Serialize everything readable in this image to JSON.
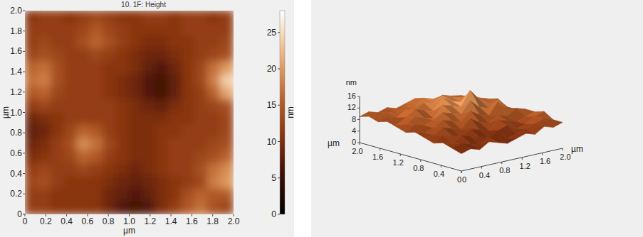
{
  "chart_data": [
    {
      "type": "heatmap",
      "title": "10. 1F: Height",
      "x_label": "µm",
      "y_label": "µm",
      "xlim": [
        0,
        2
      ],
      "ylim": [
        0,
        2
      ],
      "xticks": [
        0,
        0.2,
        0.4,
        0.6,
        0.8,
        {
          "value": 1,
          "label": "1.0"
        },
        1.2,
        1.4,
        1.6,
        1.8,
        {
          "value": 2,
          "label": "2.0"
        }
      ],
      "yticks": [
        0,
        0.2,
        0.4,
        0.6,
        0.8,
        {
          "value": 1,
          "label": "1.0"
        },
        1.2,
        1.4,
        1.6,
        1.8,
        {
          "value": 2,
          "label": "2.0"
        }
      ],
      "colorbar_label": "nm",
      "colorbar_range": [
        0,
        28
      ],
      "colorbar_ticks": [
        0,
        5,
        10,
        15,
        20,
        25
      ],
      "cells": [
        [
          11,
          12,
          12,
          11,
          12,
          13,
          12,
          11,
          11,
          12,
          12,
          11,
          12,
          12,
          11,
          12
        ],
        [
          12,
          12,
          12,
          12,
          13,
          15,
          13,
          12,
          11,
          11,
          11,
          11,
          12,
          12,
          12,
          12
        ],
        [
          12,
          13,
          12,
          12,
          14,
          16,
          14,
          12,
          11,
          10,
          10,
          11,
          11,
          12,
          12,
          13
        ],
        [
          13,
          14,
          13,
          12,
          12,
          13,
          12,
          11,
          10,
          9,
          9,
          10,
          11,
          12,
          13,
          14
        ],
        [
          16,
          17,
          14,
          12,
          12,
          12,
          11,
          11,
          10,
          8,
          7,
          9,
          11,
          13,
          17,
          20
        ],
        [
          17,
          18,
          14,
          12,
          12,
          12,
          11,
          10,
          9,
          7,
          6,
          8,
          11,
          13,
          18,
          24
        ],
        [
          15,
          16,
          13,
          12,
          12,
          12,
          11,
          10,
          9,
          7,
          6,
          8,
          11,
          12,
          16,
          21
        ],
        [
          12,
          13,
          12,
          12,
          12,
          12,
          12,
          11,
          10,
          9,
          8,
          10,
          11,
          12,
          13,
          14
        ],
        [
          9,
          10,
          11,
          12,
          12,
          12,
          12,
          11,
          10,
          10,
          10,
          11,
          11,
          12,
          12,
          13
        ],
        [
          8,
          9,
          11,
          13,
          16,
          15,
          12,
          11,
          10,
          10,
          11,
          11,
          12,
          12,
          12,
          13
        ],
        [
          9,
          10,
          12,
          14,
          19,
          17,
          13,
          11,
          10,
          10,
          11,
          12,
          12,
          12,
          13,
          14
        ],
        [
          10,
          11,
          12,
          13,
          16,
          15,
          12,
          11,
          10,
          10,
          11,
          12,
          12,
          13,
          14,
          16
        ],
        [
          12,
          13,
          12,
          12,
          13,
          12,
          11,
          10,
          9,
          10,
          11,
          12,
          12,
          14,
          17,
          19
        ],
        [
          13,
          14,
          12,
          11,
          11,
          11,
          10,
          9,
          8,
          9,
          10,
          11,
          12,
          13,
          18,
          20
        ],
        [
          12,
          12,
          11,
          11,
          11,
          11,
          9,
          8,
          7,
          8,
          10,
          11,
          14,
          16,
          15,
          15
        ],
        [
          12,
          12,
          11,
          11,
          11,
          11,
          9,
          7,
          6,
          7,
          10,
          12,
          15,
          17,
          14,
          13
        ]
      ]
    },
    {
      "type": "surface",
      "x_label": "µm",
      "y_label": "µm",
      "z_label": "nm",
      "xlim": [
        0,
        2
      ],
      "ylim": [
        0,
        2
      ],
      "zlim": [
        0,
        16
      ],
      "xticks": [
        0,
        0.4,
        0.8,
        1.2,
        1.6,
        {
          "value": 2,
          "label": "2.0"
        }
      ],
      "yticks": [
        0,
        0.4,
        0.8,
        1.2,
        1.6,
        {
          "value": 2,
          "label": "2.0"
        }
      ],
      "zticks": [
        0,
        4,
        8,
        12,
        16
      ],
      "z": [
        [
          6,
          7,
          6,
          8,
          7,
          6,
          7,
          8,
          7,
          9,
          8,
          9
        ],
        [
          7,
          8,
          7,
          6,
          8,
          7,
          6,
          7,
          8,
          9,
          10,
          9
        ],
        [
          8,
          7,
          9,
          8,
          7,
          6,
          8,
          9,
          7,
          8,
          10,
          11
        ],
        [
          7,
          9,
          8,
          7,
          9,
          8,
          7,
          10,
          9,
          8,
          9,
          10
        ],
        [
          8,
          8,
          10,
          9,
          8,
          11,
          9,
          8,
          10,
          9,
          11,
          10
        ],
        [
          9,
          8,
          9,
          11,
          10,
          9,
          12,
          10,
          9,
          13,
          10,
          9
        ],
        [
          8,
          10,
          9,
          10,
          12,
          11,
          10,
          14,
          11,
          10,
          12,
          9
        ],
        [
          9,
          9,
          11,
          10,
          9,
          13,
          12,
          11,
          16,
          12,
          10,
          11
        ],
        [
          10,
          8,
          10,
          12,
          11,
          10,
          14,
          12,
          11,
          13,
          11,
          10
        ],
        [
          9,
          10,
          9,
          11,
          10,
          12,
          11,
          13,
          12,
          11,
          10,
          9
        ],
        [
          10,
          9,
          10,
          9,
          11,
          10,
          12,
          11,
          10,
          9,
          10,
          9
        ],
        [
          9,
          10,
          9,
          10,
          9,
          10,
          11,
          10,
          9,
          10,
          9,
          8
        ]
      ]
    }
  ]
}
